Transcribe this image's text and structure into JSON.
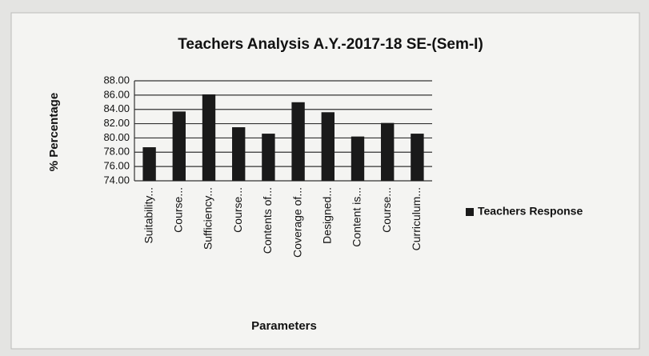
{
  "chart_data": {
    "type": "bar",
    "title": "Teachers Analysis A.Y.-2017-18 SE-(Sem-I)",
    "x_label": "Parameters",
    "y_label": "% Percentage",
    "categories": [
      "Suitability...",
      "Course...",
      "Sufficiency...",
      "Course...",
      "Contents of...",
      "Coverage of...",
      "Designed...",
      "Content is...",
      "Course...",
      "Curriculum..."
    ],
    "series": [
      {
        "name": "Teachers Response",
        "color": "#1a1a1a",
        "values": [
          78.7,
          83.7,
          86.1,
          81.5,
          80.6,
          85.0,
          83.6,
          80.2,
          82.1,
          80.6
        ]
      }
    ],
    "ylim": [
      74,
      88
    ],
    "yticks": [
      {
        "value": 74,
        "label": "74.00"
      },
      {
        "value": 76,
        "label": "76.00"
      },
      {
        "value": 78,
        "label": "78.00"
      },
      {
        "value": 80,
        "label": "80.00"
      },
      {
        "value": 82,
        "label": "82.00"
      },
      {
        "value": 84,
        "label": "84.00"
      },
      {
        "value": 86,
        "label": "86.00"
      },
      {
        "value": 88,
        "label": "88.00"
      }
    ],
    "grid": true,
    "legend": "right"
  }
}
